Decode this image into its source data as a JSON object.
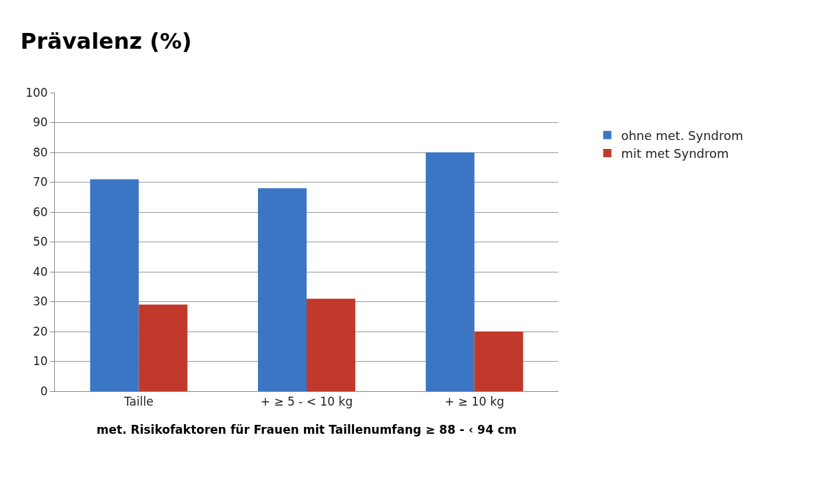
{
  "chart_data": {
    "type": "bar",
    "title": "Prävalenz (%)",
    "xlabel": "met. Risikofaktoren für Frauen mit Taillenumfang ≥ 88 - ‹ 94 cm",
    "categories": [
      "Taille",
      "+ ≥ 5 - < 10 kg",
      "+ ≥ 10 kg"
    ],
    "series": [
      {
        "name": "ohne met. Syndrom",
        "color": "#3a76c4",
        "values": [
          71,
          68,
          80
        ]
      },
      {
        "name": "mit met Syndrom",
        "color": "#c0392b",
        "values": [
          29,
          31,
          20
        ]
      }
    ],
    "ylim": [
      0,
      100
    ],
    "yticks": [
      0,
      10,
      20,
      30,
      40,
      50,
      60,
      70,
      80,
      90,
      100
    ],
    "grid": "y",
    "legend": "right"
  }
}
